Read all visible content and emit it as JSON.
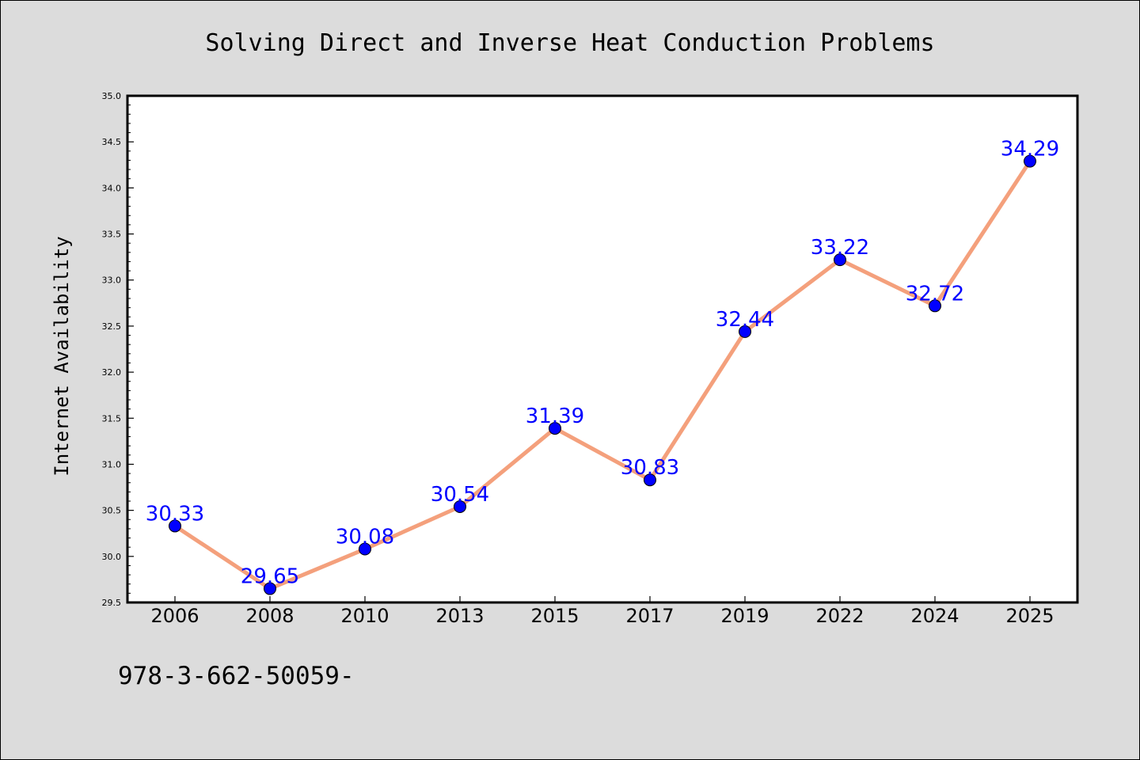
{
  "chart_data": {
    "type": "line",
    "title": "Solving Direct and Inverse Heat Conduction Problems",
    "ylabel": "Internet Availability",
    "xlabel": "",
    "categories": [
      "2006",
      "2008",
      "2010",
      "2013",
      "2015",
      "2017",
      "2019",
      "2022",
      "2024",
      "2025"
    ],
    "series": [
      {
        "values": [
          30.33,
          29.65,
          30.08,
          30.54,
          31.39,
          30.83,
          32.44,
          33.22,
          32.72,
          34.29
        ],
        "line_color": "#f4a07c",
        "marker_color": "#0000ff"
      }
    ],
    "data_labels": [
      "30.33",
      "29.65",
      "30.08",
      "30.54",
      "31.39",
      "30.83",
      "32.44",
      "33.22",
      "32.72",
      "34.29"
    ],
    "data_label_color": "#0000ff",
    "ylim": [
      29.5,
      35.0
    ],
    "yticks": [
      "29.5",
      "30.0",
      "30.5",
      "31.0",
      "31.5",
      "32.0",
      "32.5",
      "33.0",
      "33.5",
      "34.0",
      "34.5",
      "35.0"
    ],
    "grid": false,
    "legend": "none"
  },
  "footer": {
    "text": "978-3-662-50059-"
  },
  "colors": {
    "background": "#dcdcdc",
    "plot_background": "#ffffff"
  }
}
